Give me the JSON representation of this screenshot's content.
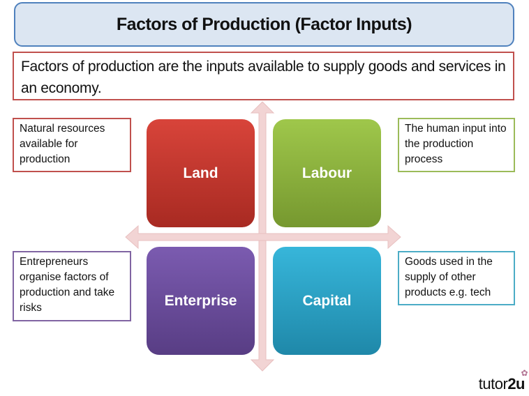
{
  "title": "Factors of Production (Factor Inputs)",
  "definition": "Factors of production are the inputs available to supply goods and services in an economy.",
  "quadrants": [
    {
      "label": "Land",
      "color": "#c0392b",
      "note": "Natural resources available for production",
      "note_border": "#c0504d"
    },
    {
      "label": "Labour",
      "color": "#8db33e",
      "note": "The human input into the production process",
      "note_border": "#9bbb59"
    },
    {
      "label": "Enterprise",
      "color": "#6a4c9c",
      "note": "Entrepreneurs organise factors of production and take risks",
      "note_border": "#8064a2"
    },
    {
      "label": "Capital",
      "color": "#2aa3c6",
      "note": "Goods used in the supply of other products e.g. tech",
      "note_border": "#4bacc6"
    }
  ],
  "arrow_color": "#f2d4d4",
  "logo": {
    "text_regular": "tutor",
    "text_bold": "2u"
  }
}
